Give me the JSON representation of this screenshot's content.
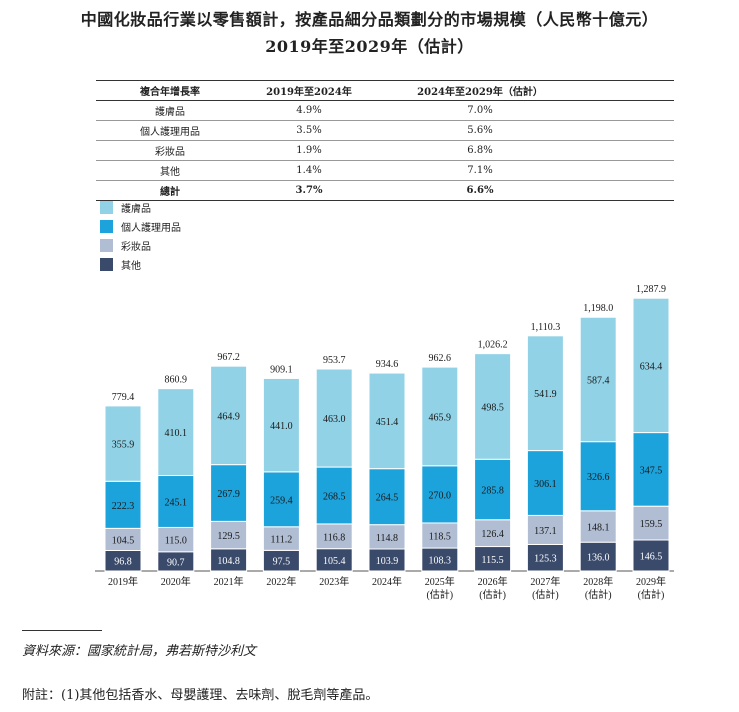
{
  "title_line1": "中國化妝品行業以零售額計，按產品細分品類劃分的市場規模（人民幣十億元）",
  "title_line2": "2019年至2029年（估計）",
  "cagr_table": {
    "headers": [
      "複合年增長率",
      "2019年至2024年",
      "2024年至2029年（估計）"
    ],
    "rows": [
      [
        "護膚品",
        "4.9%",
        "7.0%"
      ],
      [
        "個人護理用品",
        "3.5%",
        "5.6%"
      ],
      [
        "彩妝品",
        "1.9%",
        "6.8%"
      ],
      [
        "其他",
        "1.4%",
        "7.1%"
      ]
    ],
    "total": [
      "總計",
      "3.7%",
      "6.6%"
    ]
  },
  "colors": {
    "skincare": "#91d2e6",
    "personal_care": "#1ca3dc",
    "color_cosmetics": "#b0bdd3",
    "others": "#3a4a6b"
  },
  "chart_data": {
    "type": "bar",
    "stacked": true,
    "categories": [
      "2019年",
      "2020年",
      "2021年",
      "2022年",
      "2023年",
      "2024年",
      "2025年\n(估計)",
      "2026年\n(估計)",
      "2027年\n(估計)",
      "2028年\n(估計)",
      "2029年\n(估計)"
    ],
    "series": [
      {
        "name": "其他",
        "values": [
          96.8,
          90.7,
          104.8,
          97.5,
          105.4,
          103.9,
          108.3,
          115.5,
          125.3,
          136.0,
          146.5
        ]
      },
      {
        "name": "彩妝品",
        "values": [
          104.5,
          115.0,
          129.5,
          111.2,
          116.8,
          114.8,
          118.5,
          126.4,
          137.1,
          148.1,
          159.5
        ]
      },
      {
        "name": "個人護理用品",
        "values": [
          222.3,
          245.1,
          267.9,
          259.4,
          268.5,
          264.5,
          270.0,
          285.8,
          306.1,
          326.6,
          347.5
        ]
      },
      {
        "name": "護膚品",
        "values": [
          355.9,
          410.1,
          464.9,
          441.0,
          463.0,
          451.4,
          465.9,
          498.5,
          541.9,
          587.4,
          634.4
        ]
      }
    ],
    "totals": [
      "779.4",
      "860.9",
      "967.2",
      "909.1",
      "953.7",
      "934.6",
      "962.6",
      "1,026.2",
      "1,110.3",
      "1,198.0",
      "1,287.9"
    ],
    "legend": [
      "護膚品",
      "個人護理用品",
      "彩妝品",
      "其他"
    ],
    "grid": false
  },
  "source": "資料來源：國家統計局，弗若斯特沙利文",
  "footnote": "附註：(1)其他包括香水、母嬰護理、去味劑、脫毛劑等產品。"
}
